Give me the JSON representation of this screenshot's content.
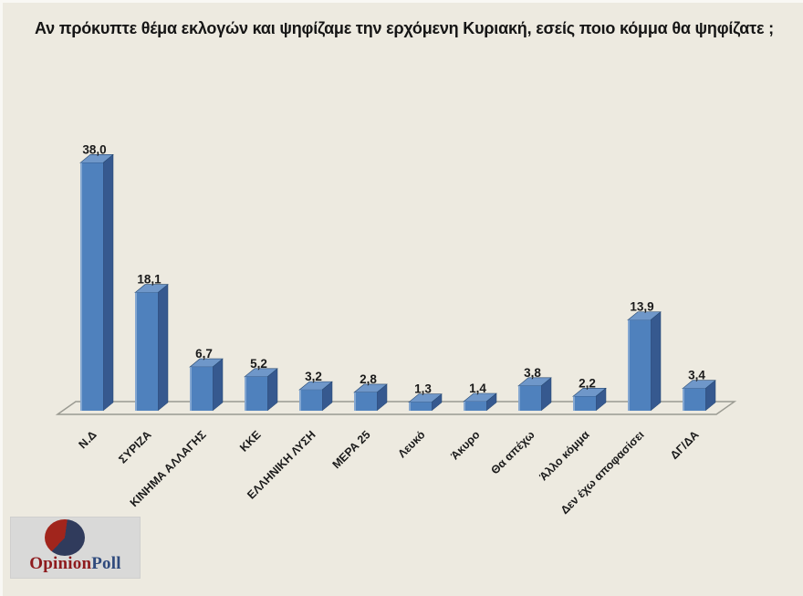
{
  "title": {
    "text": "Αν πρόκυπτε θέμα εκλογών και ψηφίζαμε την ερχόμενη Κυριακή, εσείς ποιο κόμμα θα ψηφίζατε ;"
  },
  "chart_data": {
    "type": "bar",
    "style": "3d-column",
    "title": "",
    "xlabel": "",
    "ylabel": "",
    "ylim": [
      0,
      40
    ],
    "grid": false,
    "legend": false,
    "categories": [
      "Ν.Δ",
      "ΣΥΡΙΖΑ",
      "ΚΙΝΗΜΑ ΑΛΛΑΓΗΣ",
      "ΚΚΕ",
      "ΕΛΛΗΝΙΚΗ ΛΥΣΗ",
      "ΜΕΡΑ 25",
      "Λευκό",
      "Άκυρο",
      "Θα απέχω",
      "Άλλο κόμμα",
      "Δεν έχω αποφασίσει",
      "ΔΓ/ΔΑ"
    ],
    "values": [
      38.0,
      18.1,
      6.7,
      5.2,
      3.2,
      2.8,
      1.3,
      1.4,
      3.8,
      2.2,
      13.9,
      3.4
    ],
    "value_labels": [
      "38,0",
      "18,1",
      "6,7",
      "5,2",
      "3,2",
      "2,8",
      "1,3",
      "1,4",
      "3,8",
      "2,2",
      "13,9",
      "3,4"
    ],
    "colors": {
      "bar_front": "#4F81BD",
      "bar_top": "#6F97C9",
      "bar_side": "#36598F",
      "bar_edge": "#24466F",
      "bar_highlight": "rgba(255,255,255,0.30)",
      "axis_line": "#9A9A91",
      "label": "#1A1A1A"
    }
  },
  "page": {
    "background": "#EDEAE0"
  },
  "logo": {
    "brand_part1": "Opinion",
    "brand_part2": "Poll",
    "part1_color": "#8E1B1E",
    "part2_color": "#2F4A7D",
    "pie_red": "#A1251C",
    "pie_navy": "#303B5C"
  }
}
